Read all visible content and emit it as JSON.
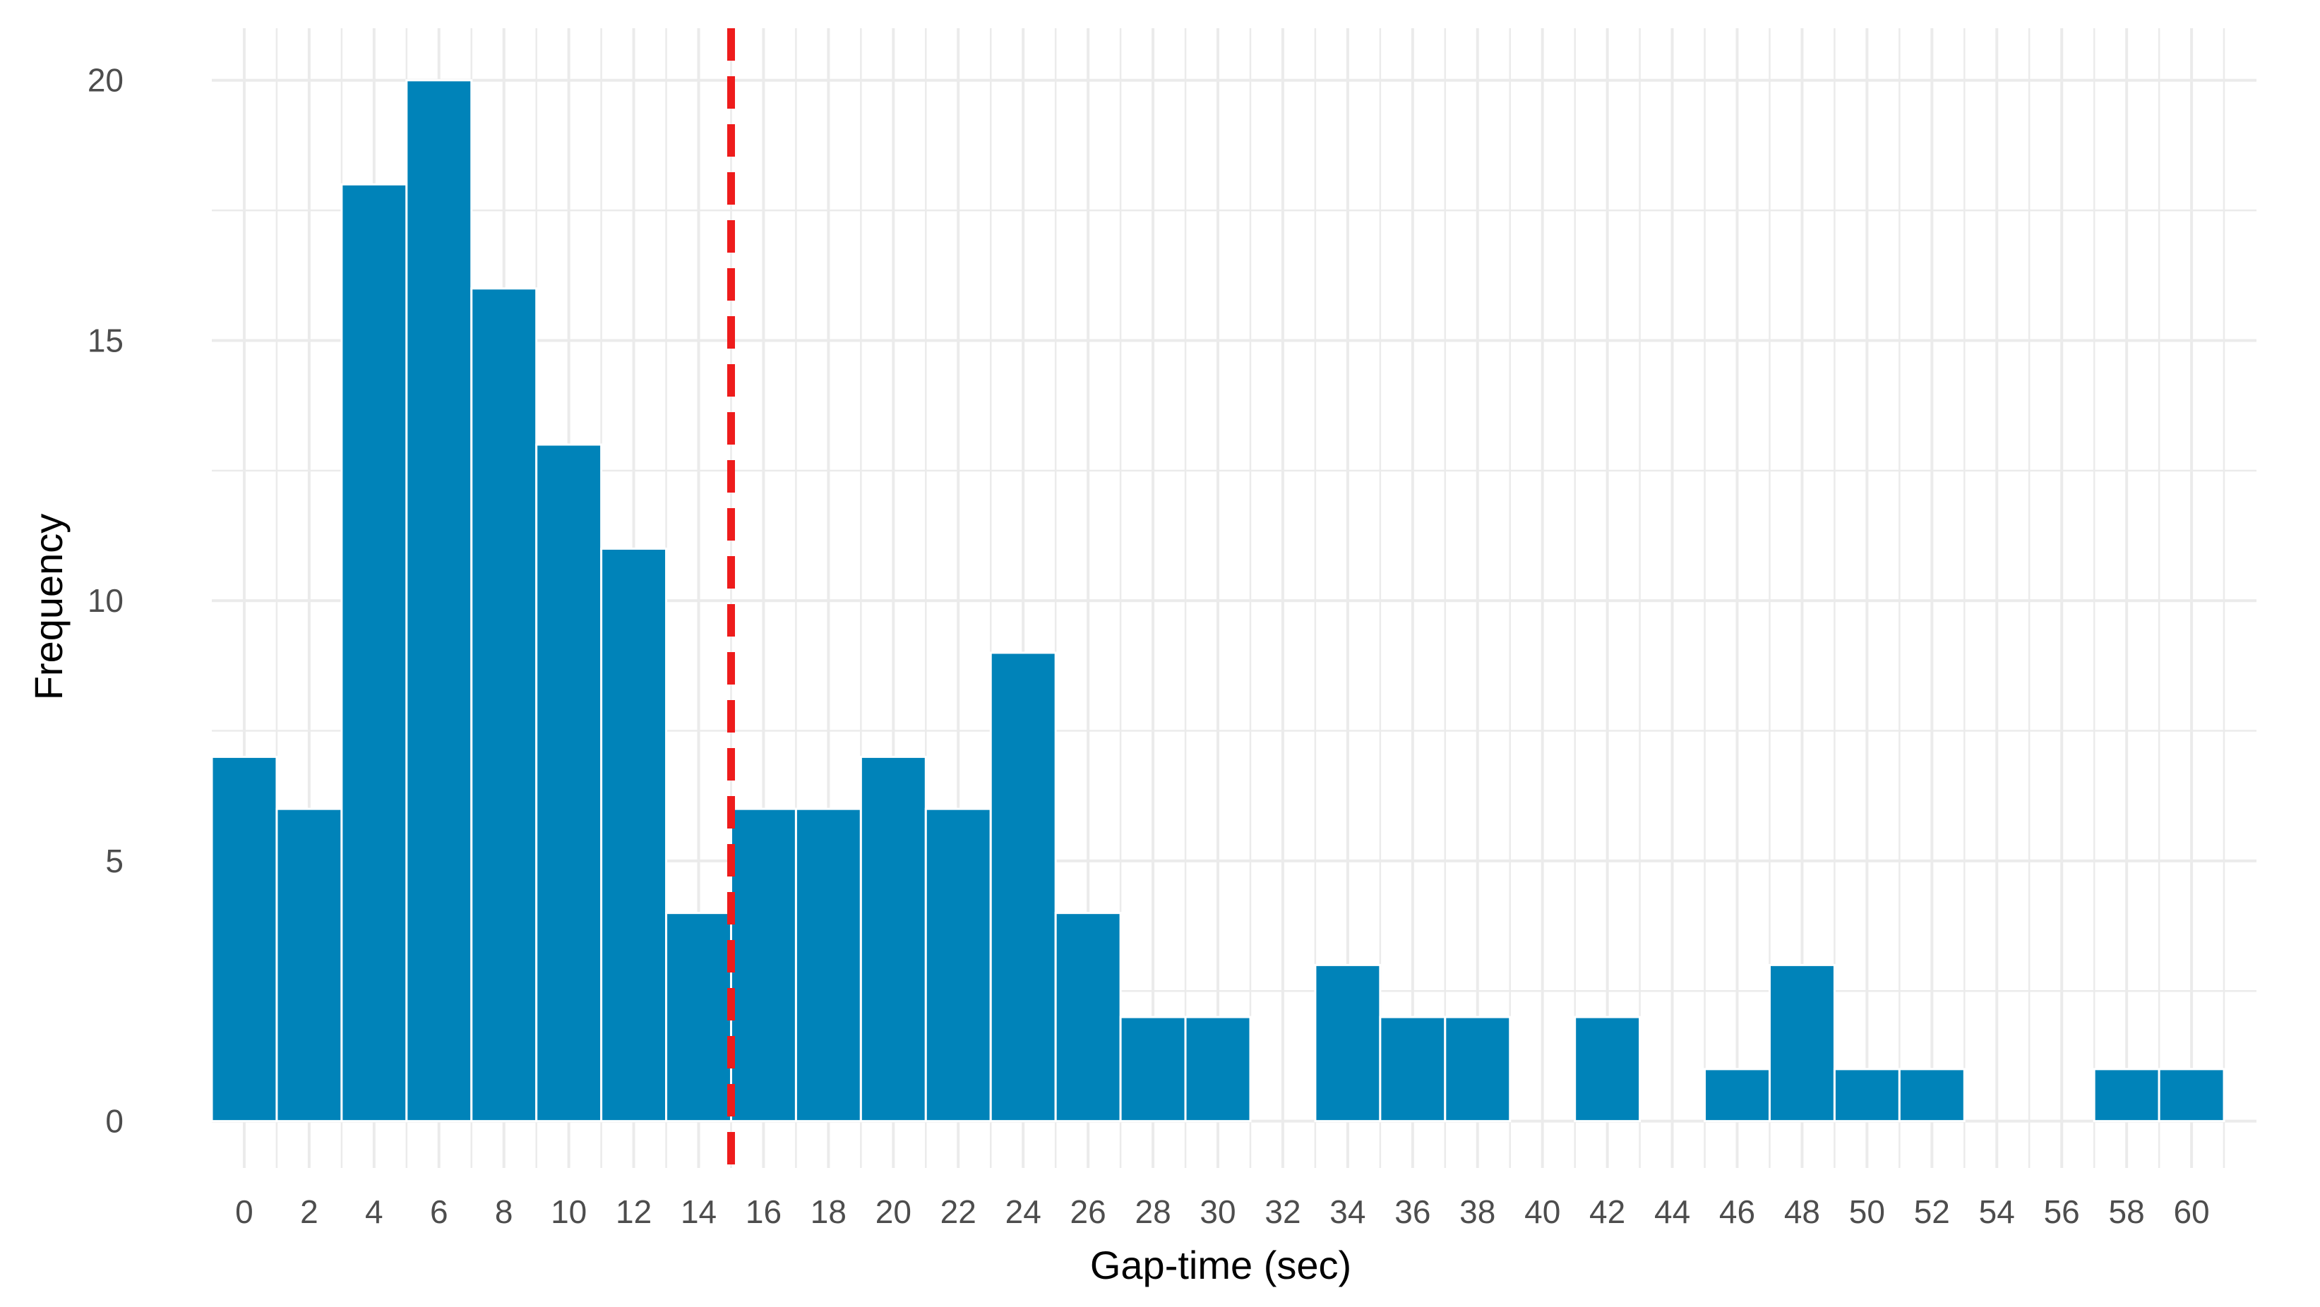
{
  "chart_data": {
    "type": "bar",
    "xlabel": "Gap-time (sec)",
    "ylabel": "Frequency",
    "xlim": [
      -1,
      62
    ],
    "ylim": [
      -0.9,
      21.0
    ],
    "bin_width": 2,
    "x_ticks": [
      "0",
      "2",
      "4",
      "6",
      "8",
      "10",
      "12",
      "14",
      "16",
      "18",
      "20",
      "22",
      "24",
      "26",
      "28",
      "30",
      "32",
      "34",
      "36",
      "38",
      "40",
      "42",
      "44",
      "46",
      "48",
      "50",
      "52",
      "54",
      "56",
      "58",
      "60"
    ],
    "y_ticks": [
      "0",
      "5",
      "10",
      "15",
      "20"
    ],
    "bins": [
      {
        "x": 0,
        "value": 7
      },
      {
        "x": 2,
        "value": 6
      },
      {
        "x": 4,
        "value": 18
      },
      {
        "x": 6,
        "value": 20
      },
      {
        "x": 8,
        "value": 16
      },
      {
        "x": 10,
        "value": 13
      },
      {
        "x": 12,
        "value": 11
      },
      {
        "x": 14,
        "value": 4
      },
      {
        "x": 16,
        "value": 6
      },
      {
        "x": 18,
        "value": 6
      },
      {
        "x": 20,
        "value": 7
      },
      {
        "x": 22,
        "value": 6
      },
      {
        "x": 24,
        "value": 9
      },
      {
        "x": 26,
        "value": 4
      },
      {
        "x": 28,
        "value": 2
      },
      {
        "x": 30,
        "value": 2
      },
      {
        "x": 32,
        "value": 0
      },
      {
        "x": 34,
        "value": 3
      },
      {
        "x": 36,
        "value": 2
      },
      {
        "x": 38,
        "value": 2
      },
      {
        "x": 40,
        "value": 0
      },
      {
        "x": 42,
        "value": 2
      },
      {
        "x": 44,
        "value": 0
      },
      {
        "x": 46,
        "value": 1
      },
      {
        "x": 48,
        "value": 3
      },
      {
        "x": 50,
        "value": 1
      },
      {
        "x": 52,
        "value": 1
      },
      {
        "x": 54,
        "value": 0
      },
      {
        "x": 56,
        "value": 0
      },
      {
        "x": 58,
        "value": 1
      },
      {
        "x": 60,
        "value": 1
      }
    ],
    "reference_line": {
      "x": 15,
      "style": "dashed",
      "color": "#ee1c1c"
    },
    "bar_color": "#0083b9",
    "grid": true,
    "legend": "none"
  }
}
